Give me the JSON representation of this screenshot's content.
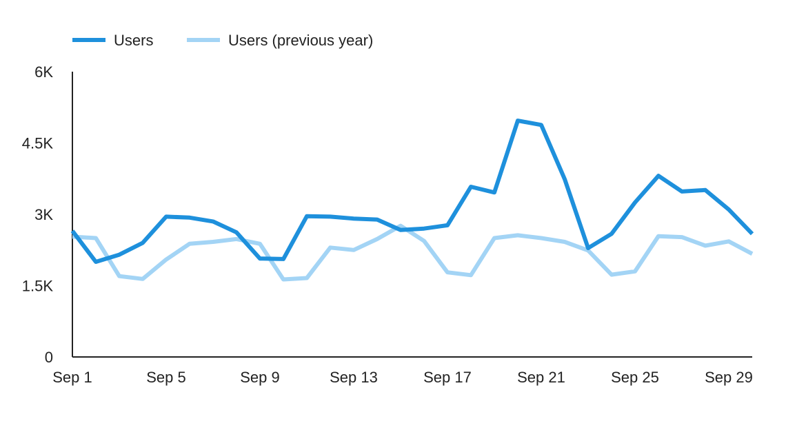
{
  "chart_data": {
    "type": "line",
    "title": "",
    "xlabel": "",
    "ylabel": "",
    "legend_position": "top-left",
    "grid": false,
    "ylim": [
      0,
      6000
    ],
    "yticks": [
      {
        "value": 0,
        "label": "0"
      },
      {
        "value": 1500,
        "label": "1.5K"
      },
      {
        "value": 3000,
        "label": "3K"
      },
      {
        "value": 4500,
        "label": "4.5K"
      },
      {
        "value": 6000,
        "label": "6K"
      }
    ],
    "x": [
      "Sep 1",
      "Sep 2",
      "Sep 3",
      "Sep 4",
      "Sep 5",
      "Sep 6",
      "Sep 7",
      "Sep 8",
      "Sep 9",
      "Sep 10",
      "Sep 11",
      "Sep 12",
      "Sep 13",
      "Sep 14",
      "Sep 15",
      "Sep 16",
      "Sep 17",
      "Sep 18",
      "Sep 19",
      "Sep 20",
      "Sep 21",
      "Sep 22",
      "Sep 23",
      "Sep 24",
      "Sep 25",
      "Sep 26",
      "Sep 27",
      "Sep 28",
      "Sep 29",
      "Sep 30"
    ],
    "xtick_labels": [
      "Sep 1",
      "Sep 5",
      "Sep 9",
      "Sep 13",
      "Sep 17",
      "Sep 21",
      "Sep 25",
      "Sep 29"
    ],
    "series": [
      {
        "name": "Users",
        "color": "#1e90dc",
        "values": [
          2650,
          2000,
          2150,
          2400,
          2950,
          2930,
          2850,
          2620,
          2070,
          2060,
          2960,
          2950,
          2910,
          2890,
          2670,
          2700,
          2770,
          3580,
          3460,
          4970,
          4880,
          3740,
          2290,
          2590,
          3250,
          3810,
          3480,
          3510,
          3100,
          2590
        ]
      },
      {
        "name": "Users (previous year)",
        "color": "#a3d4f5",
        "values": [
          2530,
          2500,
          1700,
          1640,
          2050,
          2380,
          2420,
          2480,
          2380,
          1630,
          1660,
          2300,
          2250,
          2480,
          2760,
          2440,
          1780,
          1720,
          2500,
          2560,
          2500,
          2420,
          2240,
          1730,
          1800,
          2540,
          2520,
          2340,
          2430,
          2170
        ]
      }
    ]
  }
}
